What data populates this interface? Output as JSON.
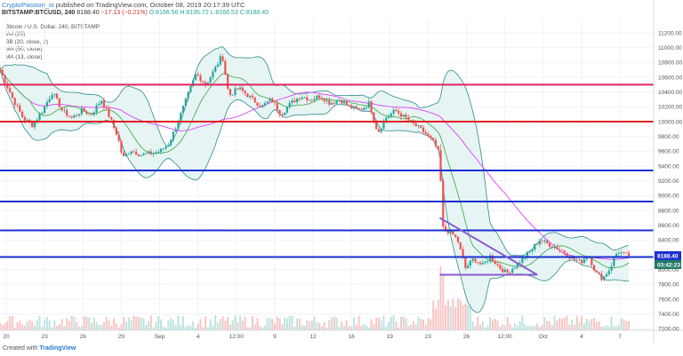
{
  "header": {
    "author": "CryptoPassion_io",
    "published_text": "published on TradingView.com, October 08, 2019 20:17:39 UTC"
  },
  "ohlc": {
    "symbol": "BITSTAMP:BTCUSD, 240",
    "last": "8188.40",
    "change": "−17.13 (−0.21%)",
    "open": "O:8166.56",
    "high": "H:8195.72",
    "low": "L:8166.53",
    "close": "C:8188.40"
  },
  "legend": [
    "Bitcoin / U.S. Dollar, 240, BITSTAMP",
    "Vol (20)",
    "BB (20, close, 2)",
    "MA (50, close)",
    "MA (13, close)"
  ],
  "footer": {
    "created_with": "Created with",
    "brand": "TradingView"
  },
  "colors": {
    "up": "#26a69a",
    "down": "#ef5350",
    "bb": "#2e8b8b",
    "bb_fill": "#e6f4f4",
    "ma50": "#e040fb",
    "ma13": "#4caf50",
    "magenta_line": "#e0245e",
    "red_line": "#e02020",
    "blue_line": "#1a2fd0",
    "triangle": "#8a5bd0",
    "price_tag": "#1a2fd0",
    "time_tag": "#1f7a66"
  },
  "chart_data": {
    "type": "candlestick",
    "symbol": "BITSTAMP:BTCUSD",
    "timeframe": "240",
    "y_axis": {
      "range": [
        7180,
        11380
      ],
      "ticks": [
        11200,
        11000,
        10800,
        10600,
        10400,
        10200,
        10000,
        9800,
        9600,
        9400,
        9200,
        9000,
        8800,
        8600,
        8400,
        8200,
        8000,
        7800,
        7600,
        7400,
        7200
      ]
    },
    "x_axis": {
      "tick_labels": [
        "20",
        "23",
        "26",
        "29",
        "Sep",
        "4",
        "12:00",
        "9",
        "12",
        "16",
        "19",
        "23",
        "26",
        "12:00",
        "Oct",
        "4",
        "7"
      ]
    },
    "last_price_tag": "8188.40",
    "countdown_tag": "03:42:23",
    "horizontal_levels": [
      {
        "price": 10500,
        "color": "magenta_line"
      },
      {
        "price": 10000,
        "color": "red_line"
      },
      {
        "price": 9340,
        "color": "blue_line"
      },
      {
        "price": 8920,
        "color": "blue_line"
      },
      {
        "price": 8530,
        "color": "blue_line"
      },
      {
        "price": 8170,
        "color": "blue_line"
      }
    ],
    "trendlines": [
      {
        "name": "descending",
        "from": {
          "x": 0.6727,
          "y": 8700
        },
        "to": {
          "x": 0.8219,
          "y": 7930
        }
      },
      {
        "name": "support",
        "from": {
          "x": 0.6727,
          "y": 7930
        },
        "to": {
          "x": 0.8219,
          "y": 7930
        }
      }
    ],
    "close_path": [
      [
        0.0,
        10700
      ],
      [
        0.02,
        10300
      ],
      [
        0.035,
        10050
      ],
      [
        0.05,
        9950
      ],
      [
        0.065,
        10150
      ],
      [
        0.08,
        10400
      ],
      [
        0.095,
        10150
      ],
      [
        0.11,
        10050
      ],
      [
        0.125,
        10150
      ],
      [
        0.14,
        10100
      ],
      [
        0.155,
        10300
      ],
      [
        0.168,
        10050
      ],
      [
        0.18,
        9800
      ],
      [
        0.188,
        9500
      ],
      [
        0.2,
        9620
      ],
      [
        0.215,
        9550
      ],
      [
        0.23,
        9570
      ],
      [
        0.245,
        9600
      ],
      [
        0.258,
        9700
      ],
      [
        0.27,
        9950
      ],
      [
        0.285,
        10300
      ],
      [
        0.3,
        10650
      ],
      [
        0.315,
        10500
      ],
      [
        0.328,
        10700
      ],
      [
        0.34,
        10900
      ],
      [
        0.35,
        10350
      ],
      [
        0.365,
        10450
      ],
      [
        0.38,
        10350
      ],
      [
        0.4,
        10200
      ],
      [
        0.415,
        10300
      ],
      [
        0.43,
        10100
      ],
      [
        0.445,
        10250
      ],
      [
        0.46,
        10350
      ],
      [
        0.475,
        10300
      ],
      [
        0.49,
        10350
      ],
      [
        0.505,
        10250
      ],
      [
        0.52,
        10300
      ],
      [
        0.535,
        10200
      ],
      [
        0.55,
        10150
      ],
      [
        0.565,
        10250
      ],
      [
        0.578,
        9850
      ],
      [
        0.59,
        10050
      ],
      [
        0.605,
        10150
      ],
      [
        0.62,
        10050
      ],
      [
        0.635,
        9950
      ],
      [
        0.65,
        9850
      ],
      [
        0.665,
        9700
      ],
      [
        0.672,
        9550
      ],
      [
        0.678,
        8550
      ],
      [
        0.69,
        8500
      ],
      [
        0.7,
        8400
      ],
      [
        0.712,
        8020
      ],
      [
        0.725,
        8150
      ],
      [
        0.738,
        8050
      ],
      [
        0.75,
        8180
      ],
      [
        0.762,
        8050
      ],
      [
        0.775,
        7950
      ],
      [
        0.788,
        8050
      ],
      [
        0.8,
        8150
      ],
      [
        0.812,
        8250
      ],
      [
        0.825,
        8400
      ],
      [
        0.838,
        8350
      ],
      [
        0.85,
        8300
      ],
      [
        0.862,
        8250
      ],
      [
        0.875,
        8150
      ],
      [
        0.888,
        8100
      ],
      [
        0.9,
        8200
      ],
      [
        0.912,
        7950
      ],
      [
        0.922,
        7880
      ],
      [
        0.932,
        8000
      ],
      [
        0.945,
        8250
      ],
      [
        0.955,
        8200
      ],
      [
        0.962,
        8188
      ]
    ]
  }
}
